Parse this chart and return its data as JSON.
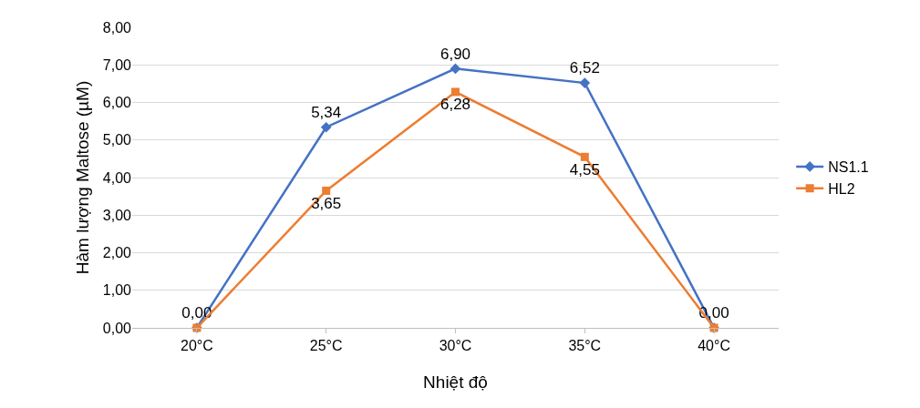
{
  "chart_data": {
    "type": "line",
    "xlabel": "Nhiệt độ",
    "ylabel": "Hàm lượng Maltose (µM)",
    "categories": [
      "20°C",
      "25°C",
      "30°C",
      "35°C",
      "40°C"
    ],
    "series": [
      {
        "name": "NS1.1",
        "color": "#4472c4",
        "marker": "diamond",
        "values": [
          0,
          5.34,
          6.9,
          6.52,
          0
        ],
        "value_labels": [
          "0,00",
          "5,34",
          "6,90",
          "6,52",
          "0,00"
        ]
      },
      {
        "name": "HL2",
        "color": "#ed7d31",
        "marker": "square",
        "values": [
          0,
          3.65,
          6.28,
          4.55,
          0
        ],
        "value_labels": [
          null,
          "3,65",
          "6,28",
          "4,55",
          null
        ]
      }
    ],
    "ylim": [
      0,
      8
    ],
    "yticks": [
      {
        "value": 0,
        "label": "0,00"
      },
      {
        "value": 1,
        "label": "1,00"
      },
      {
        "value": 2,
        "label": "2,00"
      },
      {
        "value": 3,
        "label": "3,00"
      },
      {
        "value": 4,
        "label": "4,00"
      },
      {
        "value": 5,
        "label": "5,00"
      },
      {
        "value": 6,
        "label": "6,00"
      },
      {
        "value": 7,
        "label": "7,00"
      },
      {
        "value": 8,
        "label": "8,00"
      }
    ],
    "grid": "y",
    "legend": "right",
    "line_style": "solid"
  }
}
